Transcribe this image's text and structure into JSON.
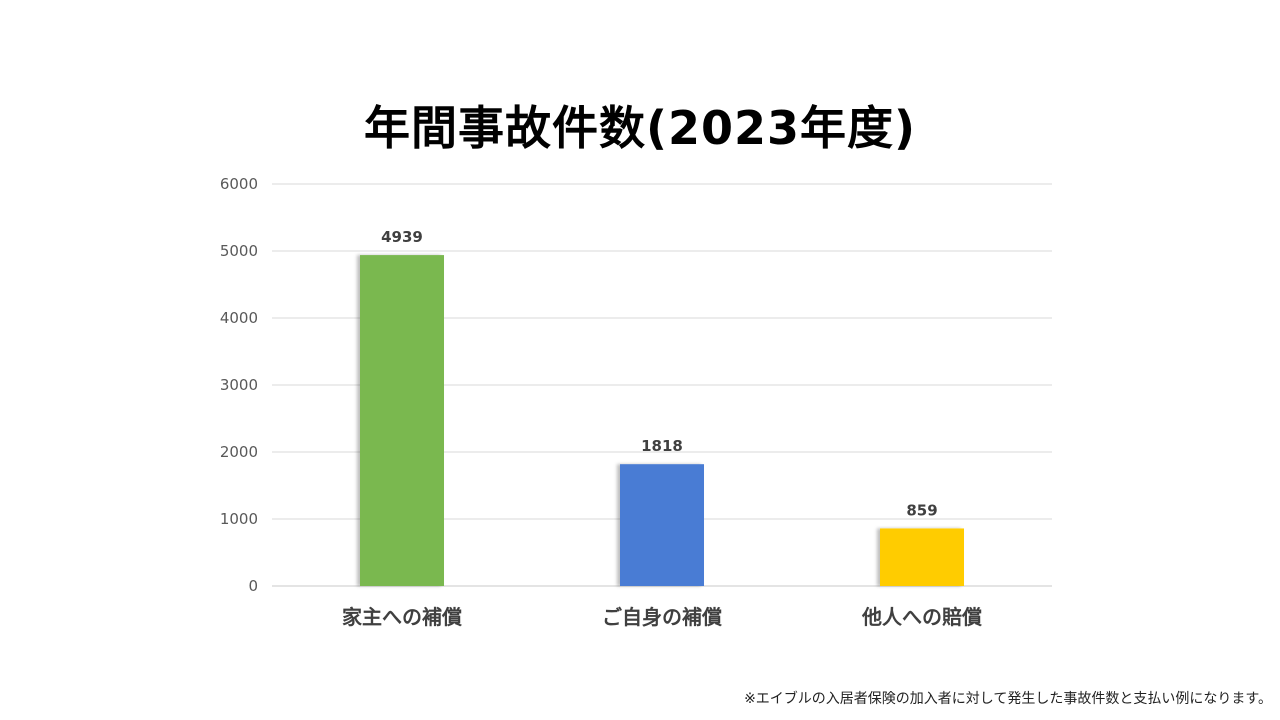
{
  "chart_data": {
    "type": "bar",
    "title": "年間事故件数(2023年度)",
    "categories": [
      "家主への補償",
      "ご自身の補償",
      "他人への賠償"
    ],
    "values": [
      4939,
      1818,
      859
    ],
    "colors": [
      "#7ab850",
      "#4a7cd4",
      "#ffcc00"
    ],
    "ylim": [
      0,
      6000
    ],
    "yticks": [
      0,
      1000,
      2000,
      3000,
      4000,
      5000,
      6000
    ],
    "ytick_labels": [
      "0",
      "1000",
      "2000",
      "3000",
      "4000",
      "5000",
      "6000"
    ],
    "data_labels": [
      "4939",
      "1818",
      "859"
    ],
    "grid": true,
    "legend": "none",
    "xlabel": "",
    "ylabel": ""
  },
  "footnote": "※エイブルの入居者保険の加入者に対して発生した事故件数と支払い例になります。"
}
